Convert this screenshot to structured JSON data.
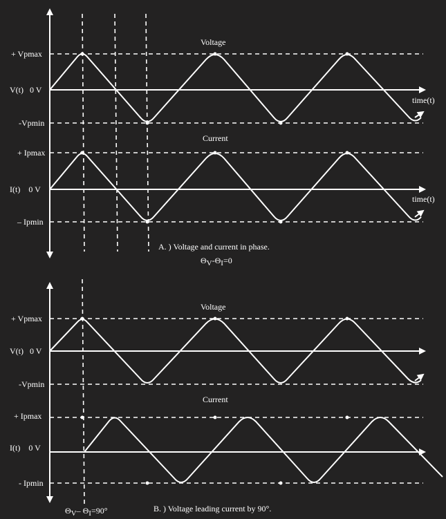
{
  "panel_a": {
    "voltage_title": "Voltage",
    "current_title": "Current",
    "v_max_label": "+ Vpmax",
    "v_zero_label": "V(t)   0 V",
    "v_min_label": "-Vpmin",
    "i_max_label": "+ Ipmax",
    "i_zero_label": "I(t)    0 V",
    "i_min_label": "– Ipmin",
    "time_label_v": "time(t)",
    "time_label_i": "time(t)",
    "caption": "A. )  Voltage and current in phase.",
    "phase_main": "Θ",
    "phase_sub_v": "V",
    "phase_mid": "-Θ",
    "phase_sub_i": "I",
    "phase_end": "=0"
  },
  "panel_b": {
    "voltage_title": "Voltage",
    "current_title": "Current",
    "v_max_label": "+ Vpmax",
    "v_zero_label": "V(t)   0 V",
    "v_min_label": "-Vpmin",
    "i_max_label": "+ Ipmax",
    "i_zero_label": "I(t)    0 V",
    "i_min_label": "- Ipmin",
    "caption": "B. )  Voltage leading current by 90°.",
    "phase_main": "Θ",
    "phase_sub_v": "V",
    "phase_mid": "– Θ",
    "phase_sub_i": "I",
    "phase_end": "=90°"
  },
  "colors": {
    "background": "#232222",
    "stroke": "#ffffff"
  }
}
